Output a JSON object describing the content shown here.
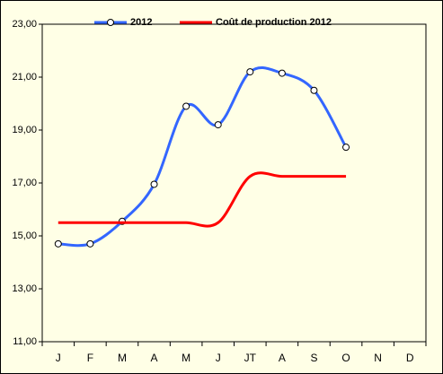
{
  "chart_data": {
    "type": "line",
    "categories": [
      "J",
      "F",
      "M",
      "A",
      "M",
      "J",
      "JT",
      "A",
      "S",
      "O",
      "N",
      "D"
    ],
    "series": [
      {
        "name": "2012",
        "color": "#3366ff",
        "marker": true,
        "values": [
          14.7,
          14.7,
          15.55,
          16.95,
          19.9,
          19.2,
          21.2,
          21.15,
          20.5,
          18.35,
          null,
          null
        ]
      },
      {
        "name": "Coût de production 2012",
        "color": "#ff0000",
        "marker": false,
        "values": [
          15.5,
          15.5,
          15.5,
          15.5,
          15.5,
          15.5,
          17.25,
          17.25,
          17.25,
          17.25,
          null,
          null
        ]
      }
    ],
    "ylim": [
      11,
      23
    ],
    "yticks": [
      {
        "value": 11,
        "label": "11,00"
      },
      {
        "value": 13,
        "label": "13,00"
      },
      {
        "value": 15,
        "label": "15,00"
      },
      {
        "value": 17,
        "label": "17,00"
      },
      {
        "value": 19,
        "label": "19,00"
      },
      {
        "value": 21,
        "label": "21,00"
      },
      {
        "value": 23,
        "label": "23,00"
      }
    ],
    "grid": false,
    "legend": "top"
  }
}
